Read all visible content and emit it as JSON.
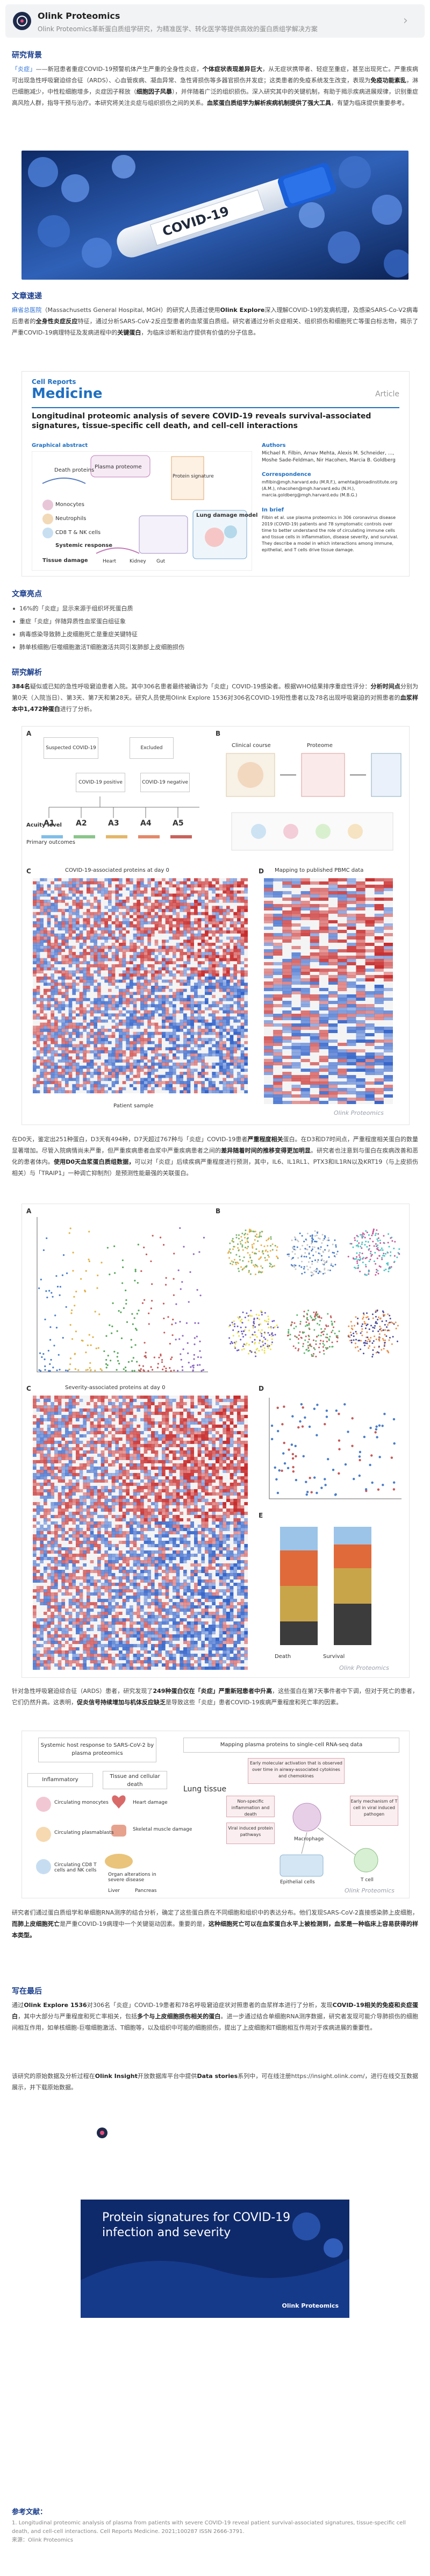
{
  "header": {
    "title": "Olink Proteomics",
    "subtitle": "Olink Proteomics革新蛋白质组学研究，为精准医学、转化医学等提供高效的蛋白质组学解决方案"
  },
  "sections": {
    "background_title": "研究背景",
    "overview_title": "文章速递",
    "highlights_title": "文章亮点",
    "analysis_title": "研究解析",
    "closing_title": "写在最后",
    "refs_title": "参考文献："
  },
  "background": {
    "tag": "「炎症」",
    "text1": "——新冠患者重症COVID-19预警机体产生严重的全身性炎症，",
    "bold1": "个体症状表现差异巨大",
    "text2": "，从无症状携带者、轻症至重症，甚至出现死亡。严重疾病可出现急性呼吸窘迫综合征（ARDS）、心血管疾病、凝血异常、急性肾损伤等多器官损伤并发症；这类患者的免疫系统发生改变，表现为",
    "bold2": "免疫功能紊乱",
    "text3": "，淋巴细胞减少，中性粒细胞增多，炎症因子释放（",
    "bold3": "细胞因子风暴",
    "text4": "），并伴随着广泛的组织损伤。深入研究其中的关键机制，有助于揭示疾病进展规律，识别重症高风险人群，指导干预与治疗。",
    "text5": "本研究将关注炎症与组织损伤之间的关系。",
    "bold4": "血浆蛋白质组学为解析疾病机制提供了强大工具",
    "text6": "，有望为临床提供重要参考。"
  },
  "overview": {
    "institution": "麻省总医院",
    "text1": "（Massachusetts General Hospital, MGH）的研究人员通过使用",
    "bold1": "Olink Explore",
    "text2": "深入理解COVID-19的发病机理，及感染SARS-Co-V2病毒后患者的",
    "bold2": "全身性炎症反应",
    "text3": "特征，通过分析SARS-CoV-2反应型患者的血浆蛋白质组。研究者通过分析炎症相关、组织损伤和细胞死亡等蛋白标志物，揭示了严重COVID-19病理特征及发病进程中的",
    "bold3": "关键蛋白",
    "text4": "，为临床诊断和治疗提供有价值的分子信息。",
    "paper": {
      "journal_brand": "Cell Reports",
      "journal_name": "Medicine",
      "article_tag": "Article",
      "title": "Longitudinal proteomic analysis of severe COVID-19 reveals survival-associated signatures, tissue-specific cell death, and cell-cell interactions",
      "graphical_abstract": "Graphical abstract",
      "authors_label": "Authors",
      "authors": "Michael R. Filbin, Arnav Mehta, Alexis M. Schneider, ..., Moshe Sade-Feldman, Nir Hacohen, Marcia B. Goldberg",
      "correspondence_label": "Correspondence",
      "correspondence": "mfilbin@mgh.harvard.edu (M.R.F.), amehta@broadinstitute.org (A.M.), nhacohen@mgh.harvard.edu (N.H.), marcia.goldberg@mgh.harvard.edu (M.B.G.)",
      "in_brief_label": "In brief",
      "in_brief": "Filbin et al. use plasma proteomics in 306 coronavirus disease 2019 (COVID-19) patients and 78 symptomatic controls over time to better understand the role of circulating immune cells and tissue cells in inflammation, disease severity, and survival. They describe a model in which interactions among immune, epithelial, and T cells drive tissue damage.",
      "diagram": {
        "death": "Death proteins",
        "plasma": "Plasma proteome",
        "protein_sig": "Protein signature",
        "protein_sig2": "Intracellular proteins",
        "mono": "Monocytes",
        "neutro": "Neutrophils",
        "cd8": "CD8 T & NK cells",
        "systemic": "Systemic response",
        "lung": "Lung damage model",
        "tissue": "Tissue damage",
        "heart": "Heart",
        "kidney": "Kidney",
        "gut": "Gut"
      }
    }
  },
  "highlights": [
    "16%的「炎症」显示来源于组织坏死蛋白质",
    "重症「炎症」伴随异质性血浆蛋白组征象",
    "病毒感染导致肺上皮细胞死亡是重症关键特征",
    "肺单核细胞/巨噬细胞激活T细胞激活共同引发肺部上皮细胞损伤"
  ],
  "analysis": {
    "p1_num": "384名",
    "p1_text1": "疑似或已知的急性呼吸窘迫患者入院。其中306名患者最终被确诊为「炎症」COVID-19感染者。根据WHO结果排序重症性评分：",
    "p1_bold1": "分析时间点",
    "p1_text2": "分别为第0天（入院当日）、第3天、第7天和第28天。研究人员使用Olink Explore 1536对306名COVID-19阳性患者以及78名出现呼吸窘迫的对照患者的",
    "p1_bold2": "血浆样本中1,472种蛋白",
    "p1_text3": "进行了分析。",
    "fig1": {
      "panel_a": "A",
      "panel_b": "B",
      "suspected": "Suspected COVID-19",
      "excluded": "Excluded",
      "positive": "COVID-19 positive",
      "negative": "COVID-19 negative",
      "acuity_level": "Acuity level",
      "primary_outcomes": "Primary outcomes",
      "levels": [
        "A1",
        "A2",
        "A3",
        "A4",
        "A5"
      ],
      "clinical": "Clinical course",
      "proteome": "Proteome",
      "c_title": "COVID-19-associated proteins at day 0",
      "d_title": "Mapping to published PBMC data",
      "patient_axis": "Patient sample",
      "panel_c": "C",
      "panel_d": "D"
    },
    "p2_text1": "在D0天，鉴定出251种蛋白，D3天有494种，D7天超过767种与「炎症」COVID-19患者",
    "p2_bold1": "严重程度相关",
    "p2_text2": "蛋白。在D3和D7时间点，严重程度相关蛋白的数量显著增加。尽管入院病情尚未严重，但严重疾病患者血浆中严重疾病患者之间的",
    "p2_bold2": "差异随着时间的推移变得更加明显",
    "p2_text3": "。研究者也注意到与蛋白在疾病改善和恶化的患者体内。",
    "p2_bold3": "使用D0天血浆蛋白质组数据，",
    "p2_text4": "可以对「炎症」后续疾病严重程度进行预测，其中，IL6、IL1RL1、PTX3和IL1RN以及KRT19（与上皮损伤相关）与「TRAIP1」一种调亡抑制剂）是预测性能最强的关联蛋白。",
    "fig2": {
      "panel_a": "A",
      "panel_b": "B",
      "panel_c": "C",
      "panel_d": "D",
      "panel_e": "E",
      "c_title": "Severity-associated proteins at day 0",
      "death_label": "Death",
      "survival_label": "Survival"
    },
    "p3_text1": "针对急性呼吸窘迫综合征（ARDS）患者，研究发现了",
    "p3_bold1": "249种蛋白仅在「炎症」严重新冠患者中升高",
    "p3_text2": "，这些蛋白在第7天事件者中下调，但对于死亡的患者，它们仍然升高。这表明，",
    "p3_bold2": "促炎信号持续增加与机体反应缺乏",
    "p3_text3": "是导致这些「炎症」患者COVID-19疾病严重程度和死亡率的因素。",
    "fig3": {
      "systemic_title": "Systemic host response to SARS-CoV-2 by plasma proteomics",
      "inflammatory": "Inflammatory",
      "tissue_cell": "Tissue and cellular death",
      "mono": "Circulating monocytes",
      "neutro": "Circulating plasmablasts",
      "cd8": "Circulating CD8 T cells and NK cells",
      "heart": "Heart damage",
      "skeletal": "Skeletal muscle damage",
      "organ": "Organ alterations in severe disease",
      "liver": "Liver",
      "pancreas": "Pancreas",
      "mapping_title": "Mapping plasma proteins to single-cell RNA-seq data",
      "lung_tissue": "Lung tissue",
      "lung_cells": "Early molecular activation that is observed over time in airway-associated cytokines and chemokines",
      "macrophage": "Macrophage",
      "epithelial": "Epithelial cells",
      "tcell": "T cell",
      "box1": "Non-specific inflammation and death",
      "box2": "Viral induced protein pathways",
      "box3": "Early mechanism of T cell in viral induced pathogen"
    },
    "p4_text1": "研究者们通过蛋白质组学和单细胞RNA测序的结合分析，确定了这些蛋白质在不同细胞和组织中的表达分布。他们发现SARS-CoV-2直接感染肺上皮细胞，",
    "p4_bold1": "而肺上皮细胞死亡",
    "p4_text2": "是严重COVID-19病理中一个关键驱动因素。重要的是，",
    "p4_bold2": "这种细胞死亡可以在血浆蛋白水平上被检测到，血浆是一种临床上容易获得的样本类型。"
  },
  "closing": {
    "p1_prefix": "通过",
    "p1_blue": "Olink Explore 1536",
    "p1_text1": "对306名「炎症」COVID-19患者和78名呼吸窘迫症状对照患者的血浆样本进行了分析，发现",
    "p1_bold1": "COVID-19相关的免疫和炎症蛋白",
    "p1_text2": "，其中大部分与严重程度和死亡率相关，包括",
    "p1_bold2": "多个与上皮细胞损伤相关的蛋白",
    "p1_text3": "。进一步通过结合单细胞RNA测序数据，研究者发现可能介导肺损伤的细胞间相互作用，如单核细胞-巨噬细胞激活、T细胞等，以及组织中可能的细胞损伤，提出了上皮细胞和T细胞相互作用对于疾病进展的重要性。",
    "p2_text1": "该研究的原始数据及分析过程在",
    "p2_bold1": "Olink Insight",
    "p2_text2": "开放数据库平台中提供",
    "p2_bold2": "Data stories",
    "p2_text3": "系列中，可在线注册https://insight.olink.com/，进行在线交互数据展示，并下载原始数据。",
    "banner_title": "Protein signatures for COVID-19 infection and severity",
    "banner_sub": "Olink Proteomics"
  },
  "watermark": "Olink Proteomics",
  "references": [
    "1. Longitudinal proteomic analysis of plasma from patients with severe COVID-19 reveal patient survival-associated signatures, tissue-specific cell death, and cell-cell interactions. Cell Reports Medicine. 2021;100287 ISSN 2666-3791.",
    "来源：Olink Proteomics"
  ]
}
